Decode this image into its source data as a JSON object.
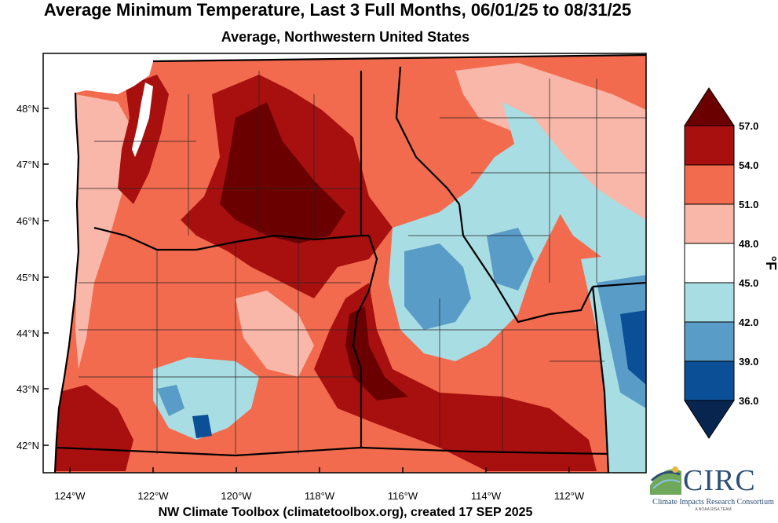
{
  "title": "Average Minimum Temperature, Last 3 Full Months, 06/01/25 to 08/31/25",
  "subtitle": "Average, Northwestern United States",
  "footer": "NW Climate Toolbox (climatetoolbox.org), created 17 SEP 2025",
  "map": {
    "lat_ticks": [
      "48°N",
      "47°N",
      "46°N",
      "45°N",
      "44°N",
      "43°N",
      "42°N"
    ],
    "lon_ticks": [
      "124°W",
      "122°W",
      "120°W",
      "118°W",
      "116°W",
      "114°W",
      "112°W"
    ],
    "lat_range": [
      41.5,
      49.0
    ],
    "lon_range": [
      -124.6,
      -110.2
    ]
  },
  "legend": {
    "unit": "°F",
    "boundaries": [
      "57.0",
      "54.0",
      "51.0",
      "48.0",
      "45.0",
      "42.0",
      "39.0",
      "36.0"
    ],
    "colors": [
      "#6b0000",
      "#a81010",
      "#f26b4e",
      "#f8b7a8",
      "#ffffff",
      "#a8dde3",
      "#5a9cc8",
      "#0b4f97",
      "#08254f"
    ]
  },
  "logo": {
    "name": "CIRC",
    "subtitle": "Climate Impacts Research Consortium",
    "tagline": "A NOAA RISA TEAM"
  }
}
